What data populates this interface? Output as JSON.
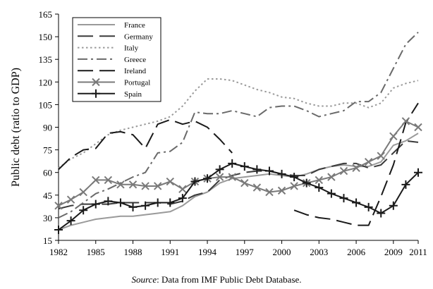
{
  "chart_data": {
    "type": "line",
    "title": "",
    "xlabel": "",
    "ylabel": "Public debt (ratio to GDP)",
    "xlim": [
      1982,
      2011
    ],
    "ylim": [
      15,
      165
    ],
    "x_ticks": [
      "1982",
      "1985",
      "1988",
      "1991",
      "1994",
      "1997",
      "2000",
      "2003",
      "2006",
      "2009",
      "2011"
    ],
    "y_ticks": [
      "15",
      "30",
      "45",
      "60",
      "75",
      "90",
      "105",
      "120",
      "135",
      "150",
      "165"
    ],
    "x": [
      1982,
      1983,
      1984,
      1985,
      1986,
      1987,
      1988,
      1989,
      1990,
      1991,
      1992,
      1993,
      1994,
      1995,
      1996,
      1997,
      1998,
      1999,
      2000,
      2001,
      2002,
      2003,
      2004,
      2005,
      2006,
      2007,
      2008,
      2009,
      2010,
      2011
    ],
    "legend_position": "top-left",
    "series": [
      {
        "name": "France",
        "color": "#9a9a9a",
        "dash": "solid",
        "marker": "none",
        "values": [
          22,
          25,
          27,
          29,
          30,
          31,
          31,
          32,
          33,
          34,
          38,
          44,
          47,
          53,
          56,
          57,
          58,
          59,
          58,
          57,
          59,
          62,
          64,
          65,
          64,
          64,
          67,
          78,
          81,
          86
        ]
      },
      {
        "name": "Germany",
        "color": "#3a3a3a",
        "dash": "longdash",
        "marker": "none",
        "values": [
          36,
          38,
          39,
          39,
          39,
          40,
          40,
          40,
          40,
          39,
          41,
          45,
          47,
          55,
          58,
          60,
          61,
          61,
          59,
          58,
          58,
          62,
          64,
          66,
          66,
          63,
          65,
          73,
          81,
          80
        ]
      },
      {
        "name": "Italy",
        "color": "#9a9a9a",
        "dash": "dots",
        "marker": "none",
        "values": [
          63,
          69,
          73,
          79,
          85,
          88,
          90,
          92,
          94,
          97,
          104,
          114,
          122,
          122,
          121,
          118,
          115,
          113,
          110,
          109,
          106,
          104,
          104,
          106,
          106,
          103,
          106,
          116,
          119,
          121
        ]
      },
      {
        "name": "Greece",
        "color": "#6a6a6a",
        "dash": "dashdot",
        "marker": "none",
        "values": [
          30,
          34,
          40,
          46,
          49,
          53,
          57,
          60,
          73,
          74,
          80,
          100,
          99,
          99,
          101,
          99,
          97,
          103,
          104,
          104,
          101,
          97,
          99,
          101,
          107,
          107,
          113,
          129,
          145,
          153
        ]
      },
      {
        "name": "Ireland",
        "color": "#1a1a1a",
        "dash": "longdash",
        "marker": "none",
        "values": [
          62,
          70,
          75,
          76,
          86,
          87,
          85,
          76,
          92,
          95,
          92,
          94,
          90,
          82,
          73,
          null,
          null,
          null,
          null,
          35,
          32,
          30,
          29,
          27,
          25,
          25,
          44,
          65,
          93,
          106
        ]
      },
      {
        "name": "Portugal",
        "color": "#7a7a7a",
        "dash": "solid",
        "marker": "x",
        "values": [
          38,
          42,
          47,
          55,
          55,
          52,
          52,
          51,
          51,
          54,
          49,
          54,
          56,
          57,
          57,
          53,
          50,
          47,
          48,
          51,
          53,
          55,
          57,
          61,
          63,
          67,
          71,
          84,
          94,
          90
        ]
      },
      {
        "name": "Spain",
        "color": "#1a1a1a",
        "dash": "solid",
        "marker": "plus",
        "values": [
          22,
          28,
          35,
          39,
          41,
          40,
          37,
          38,
          40,
          40,
          43,
          54,
          56,
          62,
          66,
          64,
          62,
          61,
          59,
          57,
          53,
          50,
          46,
          43,
          40,
          37,
          33,
          38,
          52,
          60
        ]
      }
    ]
  },
  "source": {
    "label": "Source",
    "text": ": Data from IMF Public Debt Database."
  }
}
